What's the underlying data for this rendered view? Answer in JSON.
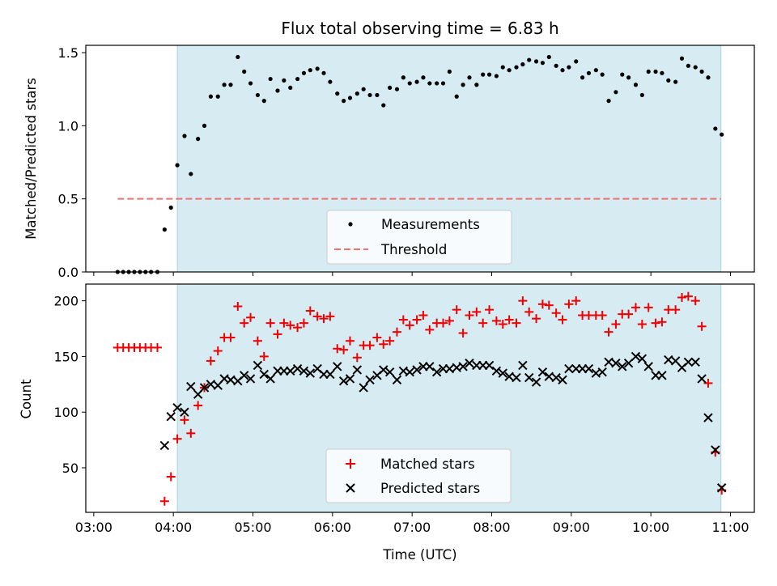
{
  "chart_data": [
    {
      "type": "scatter",
      "title": "Flux total observing time = 6.83 h",
      "ylabel": "Matched/Predicted stars",
      "xlabel": "",
      "x_range_hours": [
        2.9,
        11.3
      ],
      "ylim": [
        0,
        1.55
      ],
      "yticks": [
        0,
        0.5,
        1.0,
        1.5
      ],
      "ytick_labels": [
        "0.0",
        "0.5",
        "1.0",
        "1.5"
      ],
      "observing_window_hours": [
        4.05,
        10.88
      ],
      "threshold": {
        "name": "Threshold",
        "value": 0.5,
        "x_start_hours": 3.3,
        "x_end_hours": 10.88,
        "color": "#f07070"
      },
      "legend": {
        "placement": "lower-center",
        "entries": [
          "Measurements",
          "Threshold"
        ]
      },
      "series": [
        {
          "name": "Measurements",
          "marker": "dot",
          "color": "#000000",
          "x_hours": [
            3.3,
            3.37,
            3.44,
            3.51,
            3.58,
            3.65,
            3.72,
            3.8,
            3.89,
            3.97,
            4.05,
            4.14,
            4.22,
            4.31,
            4.39,
            4.47,
            4.56,
            4.64,
            4.72,
            4.81,
            4.89,
            4.97,
            5.06,
            5.14,
            5.22,
            5.31,
            5.39,
            5.47,
            5.56,
            5.64,
            5.72,
            5.81,
            5.89,
            5.97,
            6.06,
            6.14,
            6.22,
            6.31,
            6.39,
            6.47,
            6.56,
            6.64,
            6.72,
            6.81,
            6.89,
            6.97,
            7.06,
            7.14,
            7.22,
            7.31,
            7.39,
            7.47,
            7.56,
            7.64,
            7.72,
            7.81,
            7.89,
            7.97,
            8.06,
            8.14,
            8.22,
            8.31,
            8.39,
            8.47,
            8.56,
            8.64,
            8.72,
            8.81,
            8.89,
            8.97,
            9.06,
            9.14,
            9.22,
            9.31,
            9.39,
            9.47,
            9.56,
            9.64,
            9.72,
            9.81,
            9.89,
            9.97,
            10.06,
            10.14,
            10.22,
            10.31,
            10.39,
            10.47,
            10.56,
            10.64,
            10.72,
            10.81,
            10.89
          ],
          "y": [
            0,
            0,
            0,
            0,
            0,
            0,
            0,
            0,
            0.29,
            0.44,
            0.73,
            0.93,
            0.67,
            0.91,
            1.0,
            1.2,
            1.2,
            1.28,
            1.28,
            1.47,
            1.37,
            1.29,
            1.21,
            1.17,
            1.32,
            1.24,
            1.31,
            1.26,
            1.32,
            1.36,
            1.38,
            1.39,
            1.36,
            1.3,
            1.22,
            1.17,
            1.19,
            1.22,
            1.25,
            1.21,
            1.21,
            1.14,
            1.26,
            1.25,
            1.33,
            1.29,
            1.3,
            1.33,
            1.29,
            1.29,
            1.29,
            1.37,
            1.2,
            1.28,
            1.33,
            1.28,
            1.35,
            1.35,
            1.34,
            1.4,
            1.38,
            1.4,
            1.42,
            1.45,
            1.44,
            1.43,
            1.47,
            1.41,
            1.38,
            1.4,
            1.44,
            1.33,
            1.36,
            1.38,
            1.35,
            1.17,
            1.23,
            1.35,
            1.33,
            1.28,
            1.21,
            1.37,
            1.37,
            1.36,
            1.31,
            1.3,
            1.46,
            1.41,
            1.4,
            1.37,
            1.33,
            0.98,
            0.94
          ]
        }
      ]
    },
    {
      "type": "scatter",
      "title": "",
      "ylabel": "Count",
      "xlabel": "Time (UTC)",
      "x_range_hours": [
        2.9,
        11.3
      ],
      "ylim": [
        10,
        215
      ],
      "yticks": [
        50,
        100,
        150,
        200
      ],
      "ytick_labels": [
        "50",
        "100",
        "150",
        "200"
      ],
      "xticks_hours": [
        3,
        4,
        5,
        6,
        7,
        8,
        9,
        10,
        11
      ],
      "xtick_labels": [
        "03:00",
        "04:00",
        "05:00",
        "06:00",
        "07:00",
        "08:00",
        "09:00",
        "10:00",
        "11:00"
      ],
      "observing_window_hours": [
        4.05,
        10.88
      ],
      "legend": {
        "placement": "lower-center",
        "entries": [
          "Matched stars",
          "Predicted stars"
        ]
      },
      "series": [
        {
          "name": "Matched stars",
          "marker": "plus",
          "color": "#ee0000",
          "x_hours": [
            3.3,
            3.37,
            3.44,
            3.51,
            3.58,
            3.65,
            3.72,
            3.8,
            3.89,
            3.97,
            4.05,
            4.14,
            4.22,
            4.31,
            4.39,
            4.47,
            4.56,
            4.64,
            4.72,
            4.81,
            4.89,
            4.97,
            5.06,
            5.14,
            5.22,
            5.31,
            5.39,
            5.47,
            5.56,
            5.64,
            5.72,
            5.81,
            5.89,
            5.97,
            6.06,
            6.14,
            6.22,
            6.31,
            6.39,
            6.47,
            6.56,
            6.64,
            6.72,
            6.81,
            6.89,
            6.97,
            7.06,
            7.14,
            7.22,
            7.31,
            7.39,
            7.47,
            7.56,
            7.64,
            7.72,
            7.81,
            7.89,
            7.97,
            8.06,
            8.14,
            8.22,
            8.31,
            8.39,
            8.47,
            8.56,
            8.64,
            8.72,
            8.81,
            8.89,
            8.97,
            9.06,
            9.14,
            9.22,
            9.31,
            9.39,
            9.47,
            9.56,
            9.64,
            9.72,
            9.81,
            9.89,
            9.97,
            10.06,
            10.14,
            10.22,
            10.31,
            10.39,
            10.47,
            10.56,
            10.64,
            10.72,
            10.81,
            10.89
          ],
          "y": [
            158,
            158,
            158,
            158,
            158,
            158,
            158,
            158,
            20,
            42,
            76,
            93,
            81,
            106,
            122,
            146,
            155,
            167,
            167,
            195,
            180,
            185,
            164,
            150,
            180,
            170,
            180,
            178,
            176,
            180,
            191,
            186,
            184,
            186,
            157,
            156,
            164,
            149,
            160,
            160,
            167,
            161,
            164,
            172,
            183,
            178,
            183,
            187,
            174,
            180,
            180,
            182,
            192,
            171,
            187,
            190,
            180,
            192,
            182,
            179,
            183,
            180,
            200,
            190,
            184,
            197,
            196,
            189,
            183,
            197,
            200,
            187,
            187,
            187,
            187,
            172,
            179,
            188,
            188,
            194,
            179,
            194,
            180,
            181,
            192,
            192,
            203,
            204,
            200,
            177,
            126,
            64,
            30
          ]
        },
        {
          "name": "Predicted stars",
          "marker": "cross",
          "color": "#000000",
          "x_hours": [
            3.89,
            3.97,
            4.05,
            4.14,
            4.22,
            4.31,
            4.39,
            4.47,
            4.56,
            4.64,
            4.72,
            4.81,
            4.89,
            4.97,
            5.06,
            5.14,
            5.22,
            5.31,
            5.39,
            5.47,
            5.56,
            5.64,
            5.72,
            5.81,
            5.89,
            5.97,
            6.06,
            6.14,
            6.22,
            6.31,
            6.39,
            6.47,
            6.56,
            6.64,
            6.72,
            6.81,
            6.89,
            6.97,
            7.06,
            7.14,
            7.22,
            7.31,
            7.39,
            7.47,
            7.56,
            7.64,
            7.72,
            7.81,
            7.89,
            7.97,
            8.06,
            8.14,
            8.22,
            8.31,
            8.39,
            8.47,
            8.56,
            8.64,
            8.72,
            8.81,
            8.89,
            8.97,
            9.06,
            9.14,
            9.22,
            9.31,
            9.39,
            9.47,
            9.56,
            9.64,
            9.72,
            9.81,
            9.89,
            9.97,
            10.06,
            10.14,
            10.22,
            10.31,
            10.39,
            10.47,
            10.56,
            10.64,
            10.72,
            10.81,
            10.89
          ],
          "y": [
            70,
            96,
            104,
            100,
            123,
            116,
            122,
            125,
            124,
            130,
            129,
            128,
            133,
            130,
            142,
            134,
            130,
            137,
            137,
            137,
            139,
            137,
            135,
            139,
            134,
            134,
            141,
            128,
            130,
            138,
            122,
            129,
            133,
            138,
            136,
            129,
            137,
            136,
            138,
            141,
            141,
            136,
            139,
            139,
            140,
            141,
            144,
            142,
            142,
            142,
            137,
            135,
            132,
            131,
            142,
            131,
            127,
            136,
            132,
            131,
            129,
            139,
            139,
            139,
            139,
            135,
            136,
            145,
            144,
            141,
            144,
            150,
            148,
            141,
            133,
            133,
            147,
            146,
            140,
            145,
            145,
            130,
            95,
            66,
            32
          ]
        }
      ]
    }
  ]
}
